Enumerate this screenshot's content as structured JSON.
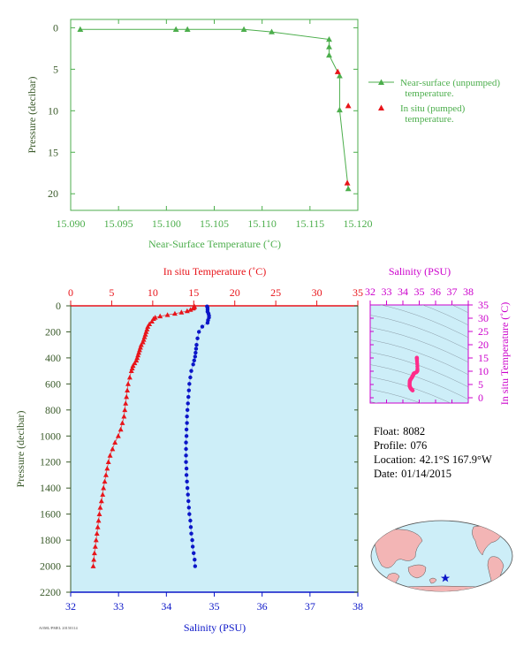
{
  "colors": {
    "surface_green": "#4cae4c",
    "axis_green": "#3a5a2a",
    "temperature_red": "#e8141a",
    "salinity_blue": "#0b16c8",
    "inset_magenta": "#cc00cc",
    "panel_fill": "#cdeef8",
    "inset_point": "#ff2d8a",
    "map_land": "#f3b5b5",
    "map_ocean": "#cdeef8"
  },
  "float_info": {
    "float_label": "Float:",
    "float_value": "8082",
    "profile_label": "Profile:",
    "profile_value": "076",
    "location_label": "Location:",
    "location_value": "42.1°S  167.9°W",
    "date_label": "Date:",
    "date_value": "01/14/2015"
  },
  "footer_stamp": "AOML/PMEL 20150114",
  "chart_data": [
    {
      "type": "line",
      "xlabel": "Near-Surface Temperature (˚C)",
      "ylabel": "Pressure (decibar)",
      "xlim": [
        15.09,
        15.12
      ],
      "ylim": [
        22,
        -1
      ],
      "xticks": [
        "15.090",
        "15.095",
        "15.100",
        "15.105",
        "15.110",
        "15.115",
        "15.120"
      ],
      "yticks": [
        "0",
        "5",
        "10",
        "15",
        "20"
      ],
      "legend_position": "right",
      "series": [
        {
          "name": "Near-surface (unpumped) temperature.",
          "x": [
            15.091,
            15.101,
            15.1022,
            15.1081,
            15.111,
            15.117,
            15.117,
            15.117,
            15.1181,
            15.1181,
            15.119
          ],
          "y": [
            0.2,
            0.2,
            0.2,
            0.2,
            0.5,
            1.4,
            2.3,
            3.3,
            5.8,
            9.9,
            19.4
          ]
        },
        {
          "name": "In situ (pumped) temperature.",
          "x": [
            15.1179,
            15.119,
            15.1189
          ],
          "y": [
            5.3,
            9.4,
            18.7
          ]
        }
      ]
    },
    {
      "type": "scatter",
      "xlabel": "Salinity (PSU)",
      "x2label": "In situ Temperature (˚C)",
      "ylabel": "Pressure (decibar)",
      "salinity_xlim": [
        32,
        38
      ],
      "temperature_xlim": [
        0,
        35
      ],
      "ylim": [
        2200,
        0
      ],
      "salinity_ticks": [
        "32",
        "33",
        "34",
        "35",
        "36",
        "37",
        "38"
      ],
      "temperature_ticks": [
        "0",
        "5",
        "10",
        "15",
        "20",
        "25",
        "30",
        "35"
      ],
      "yticks": [
        "0",
        "200",
        "400",
        "600",
        "800",
        "1000",
        "1200",
        "1400",
        "1600",
        "1800",
        "2000",
        "2200"
      ],
      "series": [
        {
          "name": "In situ Temperature",
          "pressure": [
            5,
            10,
            15,
            20,
            30,
            40,
            50,
            60,
            70,
            80,
            90,
            100,
            120,
            140,
            160,
            180,
            200,
            220,
            240,
            260,
            280,
            300,
            320,
            340,
            360,
            380,
            400,
            420,
            440,
            460,
            480,
            500,
            550,
            600,
            650,
            700,
            750,
            800,
            850,
            900,
            950,
            1000,
            1050,
            1100,
            1150,
            1200,
            1250,
            1300,
            1350,
            1400,
            1450,
            1500,
            1550,
            1600,
            1650,
            1700,
            1750,
            1800,
            1850,
            1900,
            1950,
            2000
          ],
          "values": [
            15.08,
            15.06,
            15.0,
            14.9,
            14.6,
            14.2,
            13.5,
            12.7,
            11.8,
            10.9,
            10.3,
            10.1,
            9.9,
            9.6,
            9.4,
            9.3,
            9.2,
            9.1,
            9.0,
            8.9,
            8.8,
            8.6,
            8.5,
            8.4,
            8.3,
            8.2,
            8.1,
            8.0,
            7.8,
            7.6,
            7.5,
            7.4,
            7.2,
            7.0,
            6.9,
            6.8,
            6.7,
            6.6,
            6.5,
            6.3,
            6.1,
            5.8,
            5.4,
            5.1,
            4.8,
            4.6,
            4.45,
            4.3,
            4.15,
            4.0,
            3.9,
            3.75,
            3.6,
            3.5,
            3.4,
            3.3,
            3.2,
            3.1,
            3.0,
            2.9,
            2.82,
            2.75
          ]
        },
        {
          "name": "Salinity",
          "pressure": [
            5,
            15,
            30,
            45,
            60,
            75,
            90,
            110,
            130,
            160,
            200,
            250,
            300,
            330,
            360,
            390,
            420,
            450,
            500,
            550,
            600,
            650,
            700,
            750,
            800,
            850,
            900,
            950,
            1000,
            1050,
            1100,
            1150,
            1200,
            1250,
            1300,
            1350,
            1400,
            1450,
            1500,
            1550,
            1600,
            1650,
            1700,
            1750,
            1800,
            1850,
            1900,
            1950,
            2000
          ],
          "values": [
            34.85,
            34.86,
            34.86,
            34.86,
            34.88,
            34.89,
            34.89,
            34.87,
            34.86,
            34.75,
            34.68,
            34.65,
            34.63,
            34.62,
            34.61,
            34.6,
            34.58,
            34.56,
            34.52,
            34.5,
            34.48,
            34.47,
            34.46,
            34.45,
            34.44,
            34.43,
            34.43,
            34.42,
            34.42,
            34.41,
            34.41,
            34.41,
            34.41,
            34.42,
            34.42,
            34.43,
            34.44,
            34.45,
            34.46,
            34.47,
            34.48,
            34.5,
            34.51,
            34.52,
            34.54,
            34.55,
            34.57,
            34.59,
            34.6
          ]
        }
      ]
    },
    {
      "type": "scatter",
      "xlabel": "Salinity (PSU)",
      "ylabel": "In situ Temperature (˚C)",
      "xlim": [
        32,
        38
      ],
      "ylim": [
        -2,
        35
      ],
      "xticks": [
        "32",
        "33",
        "34",
        "35",
        "36",
        "37",
        "38"
      ],
      "yticks": [
        "0",
        "5",
        "10",
        "15",
        "20",
        "25",
        "30",
        "35"
      ]
    }
  ]
}
